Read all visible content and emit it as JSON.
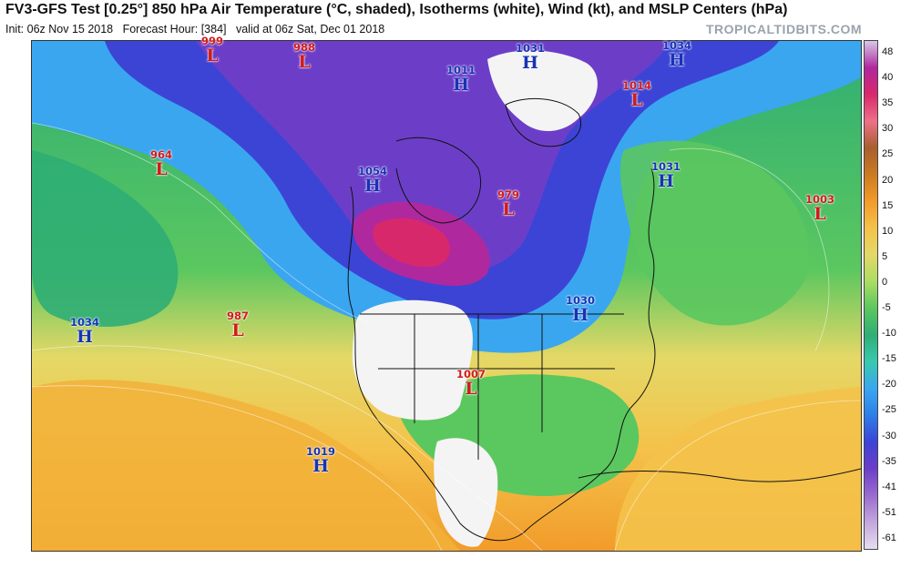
{
  "header": {
    "title": "FV3-GFS Test [0.25°] 850 hPa Air Temperature (°C, shaded), Isotherms (white), Wind (kt), and MSLP Centers (hPa)",
    "init": "Init: 06z Nov 15 2018",
    "forecast_hour": "Forecast Hour: [384]",
    "valid": "valid at 06z Sat, Dec 01 2018",
    "credit": "TROPICALTIDBITS.COM"
  },
  "colorbar": {
    "ticks": [
      "48",
      "40",
      "35",
      "30",
      "25",
      "20",
      "15",
      "10",
      "5",
      "0",
      "-5",
      "-10",
      "-15",
      "-20",
      "-25",
      "-30",
      "-35",
      "-41",
      "-51",
      "-61"
    ],
    "colors": [
      "#d8c8e8",
      "#b0289e",
      "#d8286c",
      "#ee7088",
      "#a85f2e",
      "#cc7a22",
      "#f29b2a",
      "#f4c24a",
      "#e4d867",
      "#aadd63",
      "#5bc75f",
      "#2fae74",
      "#39c9b0",
      "#3aa6f0",
      "#2e7fe8",
      "#3c44d6",
      "#6c3ec8",
      "#9a6bcf",
      "#c3a6dc",
      "#e6def0"
    ]
  },
  "pressure_centers": [
    {
      "type": "L",
      "value": "999"
    },
    {
      "type": "L",
      "value": "988"
    },
    {
      "type": "H",
      "value": "1031"
    },
    {
      "type": "H",
      "value": "1034"
    },
    {
      "type": "H",
      "value": "1011"
    },
    {
      "type": "L",
      "value": "1014"
    },
    {
      "type": "L",
      "value": "964"
    },
    {
      "type": "H",
      "value": "1054"
    },
    {
      "type": "L",
      "value": "979"
    },
    {
      "type": "H",
      "value": "1031"
    },
    {
      "type": "L",
      "value": "1003"
    },
    {
      "type": "H",
      "value": "1034"
    },
    {
      "type": "L",
      "value": "987"
    },
    {
      "type": "H",
      "value": "1030"
    },
    {
      "type": "L",
      "value": "1007"
    },
    {
      "type": "H",
      "value": "1019"
    }
  ]
}
